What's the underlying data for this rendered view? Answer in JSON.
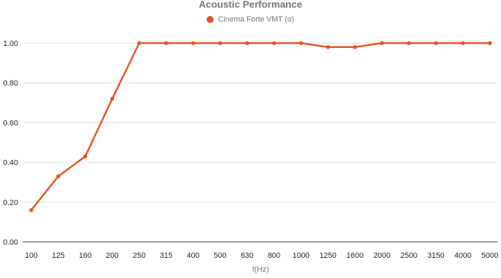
{
  "chart_data": {
    "type": "line",
    "title": "Acoustic Performance",
    "xlabel": "f(Hz)",
    "ylabel": "",
    "ylim": [
      0,
      1.0
    ],
    "yticks": [
      "0.00",
      "0.20",
      "0.40",
      "0.60",
      "0.80",
      "1.00"
    ],
    "categories": [
      "100",
      "125",
      "160",
      "200",
      "250",
      "315",
      "400",
      "500",
      "630",
      "800",
      "1000",
      "1250",
      "1600",
      "2000",
      "2500",
      "3150",
      "4000",
      "5000"
    ],
    "series": [
      {
        "name": "Cinema Forte VMT (α)",
        "color": "#e8501e",
        "values": [
          0.16,
          0.33,
          0.43,
          0.72,
          1.0,
          1.0,
          1.0,
          1.0,
          1.0,
          1.0,
          1.0,
          0.98,
          0.98,
          1.0,
          1.0,
          1.0,
          1.0,
          1.0
        ]
      }
    ],
    "grid": true,
    "legend_position": "top-center"
  }
}
